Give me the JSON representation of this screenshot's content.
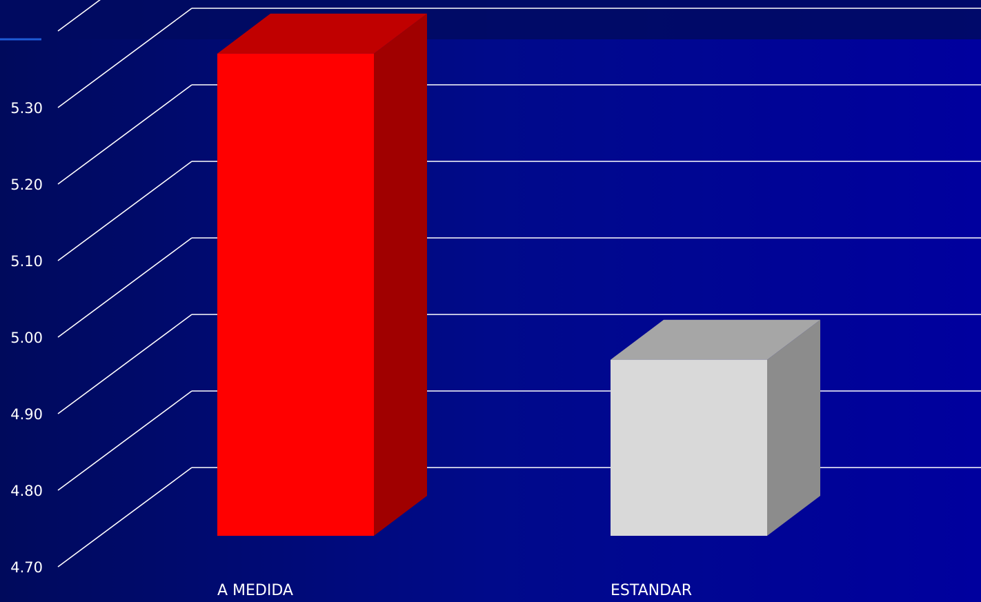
{
  "chart_data": {
    "type": "bar",
    "style": "3d-column",
    "categories": [
      "A MEDIDA",
      "ESTANDAR"
    ],
    "values": [
      5.33,
      4.93
    ],
    "ylim": [
      4.7,
      5.4
    ],
    "yticks": [
      "4.70",
      "4.80",
      "4.90",
      "5.00",
      "5.10",
      "5.20",
      "5.30"
    ],
    "grid": true,
    "bar_colors": {
      "A MEDIDA": {
        "front": "#ff0000",
        "top": "#c00000",
        "side": "#a00000"
      },
      "ESTANDAR": {
        "front": "#d9d9d9",
        "top": "#a6a6a6",
        "side": "#8c8c8c"
      }
    },
    "background_colors": [
      "#000a5c",
      "#00009e"
    ],
    "grid_color": "#ffffff"
  }
}
